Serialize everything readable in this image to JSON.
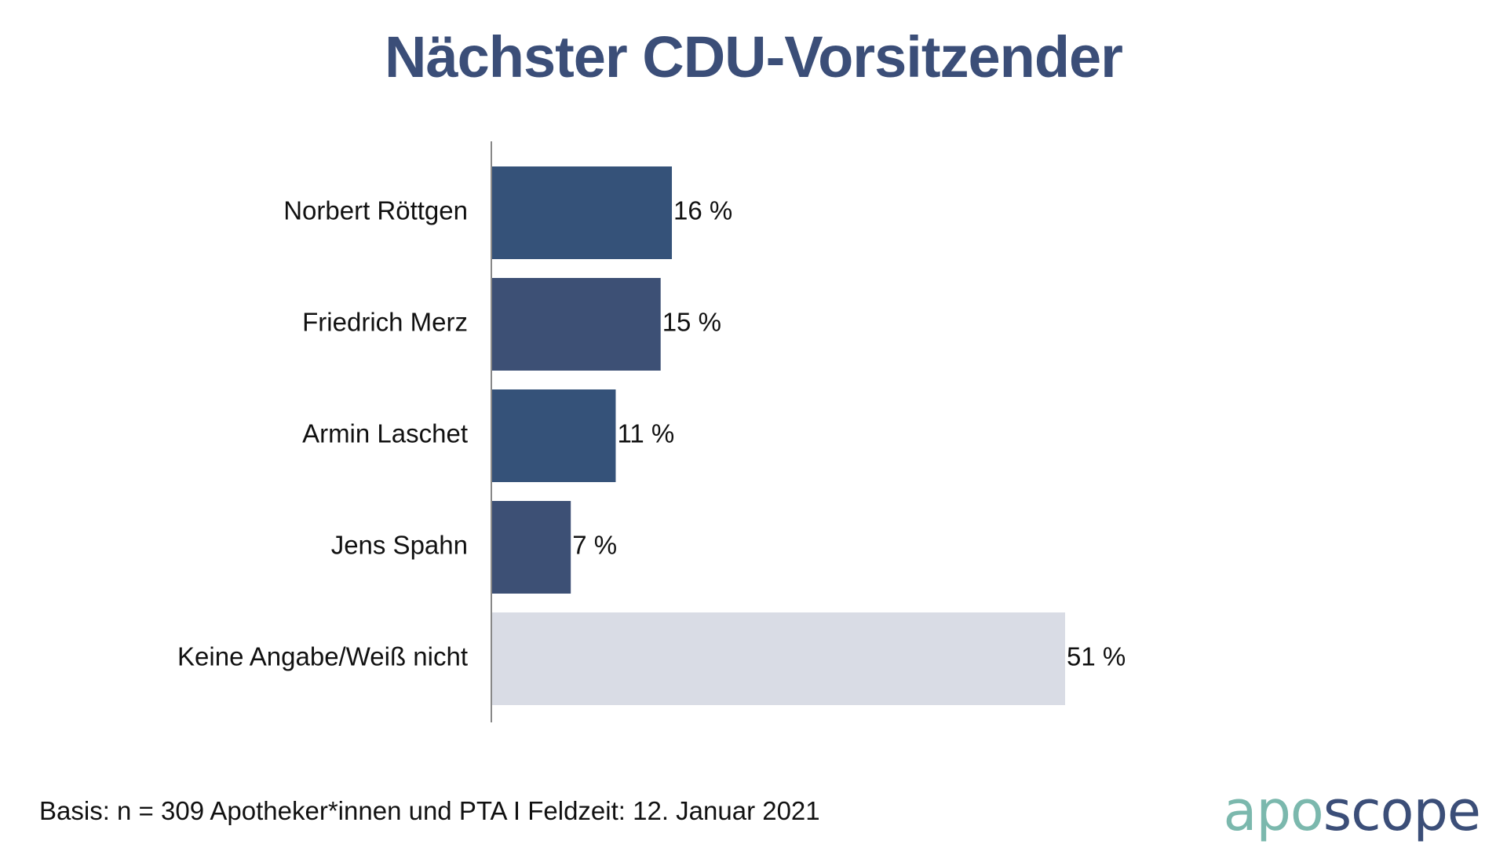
{
  "colors": {
    "title": "#3b4e78",
    "bar_primary": "#355279",
    "bar_secondary": "#3d5075",
    "bar_other": "#d9dce5",
    "axis": "#888888",
    "logo_apo": "#7bb8ad",
    "logo_scope": "#3b4e78"
  },
  "chart_data": {
    "type": "bar",
    "orientation": "horizontal",
    "title": "Nächster CDU-Vorsitzender",
    "categories": [
      "Norbert Röttgen",
      "Friedrich Merz",
      "Armin Laschet",
      "Jens Spahn",
      "Keine Angabe/Weiß nicht"
    ],
    "values": [
      16,
      15,
      11,
      7,
      51
    ],
    "value_labels": [
      "16 %",
      "15 %",
      "11 %",
      "7 %",
      "51 %"
    ],
    "bar_colors": [
      "#355279",
      "#3d5075",
      "#355279",
      "#3d5075",
      "#d9dce5"
    ],
    "unit": "%",
    "xlim": [
      0,
      51
    ],
    "grid": false,
    "legend": "none"
  },
  "footnote": "Basis: n = 309 Apotheker*innen und PTA I Feldzeit: 12. Januar 2021",
  "logo": {
    "part1": "apo",
    "part2": "scope"
  }
}
